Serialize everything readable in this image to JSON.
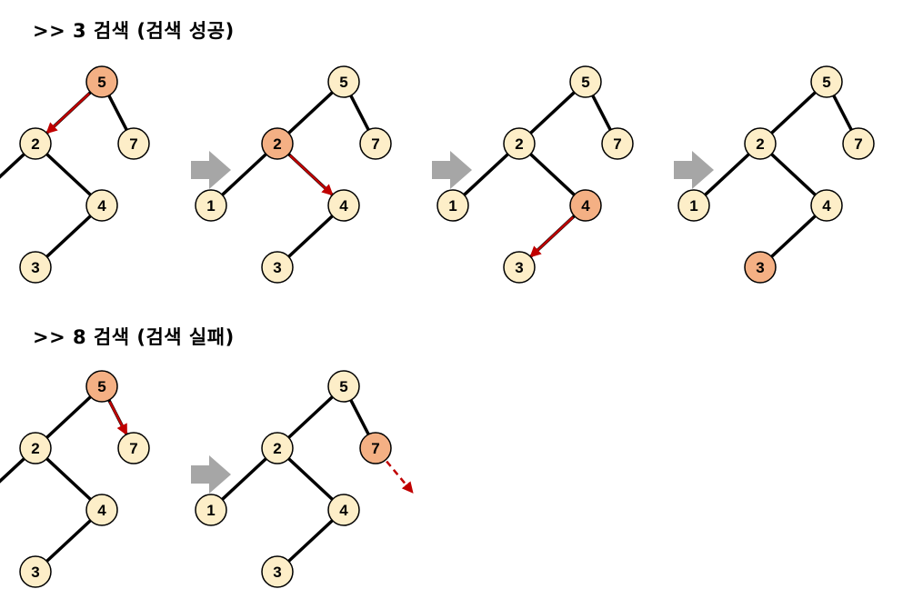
{
  "headings": {
    "search_success": ">> 3 검색 (검색 성공)",
    "search_fail": ">> 8 검색 (검색 실패)"
  },
  "colors": {
    "node_fill": "#fdeec8",
    "visited_fill": "#f4b084",
    "path_arrow": "#c00000",
    "step_arrow": "#a6a6a6",
    "edge": "#000000"
  },
  "tree": {
    "nodes": [
      {
        "id": "n5",
        "label": "5"
      },
      {
        "id": "n2",
        "label": "2"
      },
      {
        "id": "n7",
        "label": "7"
      },
      {
        "id": "n1",
        "label": "1"
      },
      {
        "id": "n4",
        "label": "4"
      },
      {
        "id": "n3",
        "label": "3"
      }
    ],
    "edges": [
      [
        "n5",
        "n2"
      ],
      [
        "n5",
        "n7"
      ],
      [
        "n2",
        "n1"
      ],
      [
        "n2",
        "n4"
      ],
      [
        "n4",
        "n3"
      ]
    ]
  },
  "search_success_steps": [
    {
      "highlight": "n5",
      "arrow": {
        "from": "n5",
        "to": "n2",
        "style": "solid"
      }
    },
    {
      "highlight": "n2",
      "arrow": {
        "from": "n2",
        "to": "n4",
        "style": "solid"
      }
    },
    {
      "highlight": "n4",
      "arrow": {
        "from": "n4",
        "to": "n3",
        "style": "solid"
      }
    },
    {
      "highlight": "n3",
      "arrow": null
    }
  ],
  "search_fail_steps": [
    {
      "highlight": "n5",
      "arrow": {
        "from": "n5",
        "to": "n7",
        "style": "solid"
      }
    },
    {
      "highlight": "n7",
      "arrow": {
        "from": "n7",
        "to": "empty-right",
        "style": "dashed"
      }
    }
  ]
}
